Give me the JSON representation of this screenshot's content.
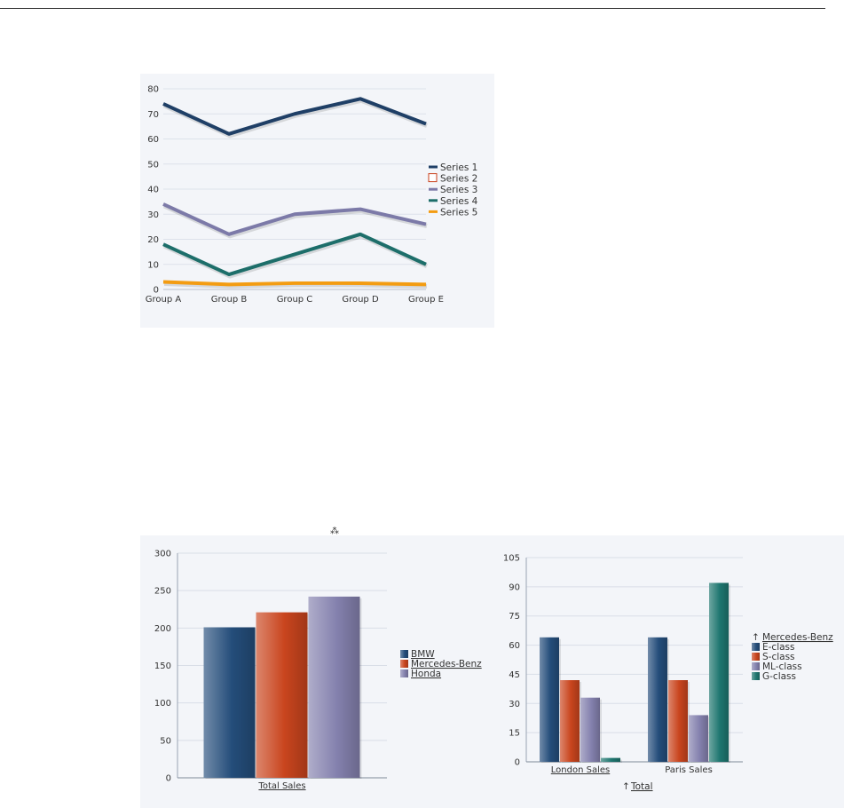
{
  "stray_mark": "⁂",
  "charts": {
    "line": {
      "type": "line",
      "title": "",
      "categories": [
        "Group A",
        "Group B",
        "Group C",
        "Group D",
        "Group E"
      ],
      "ylim": [
        0,
        80
      ],
      "yticks": [
        0,
        10,
        20,
        30,
        40,
        50,
        60,
        70,
        80
      ],
      "grid": true,
      "legend": "right",
      "series": [
        {
          "name": "Series 1",
          "values": [
            74,
            62,
            70,
            76,
            66
          ],
          "color": "#1f3f66",
          "legend_style": "line"
        },
        {
          "name": "Series 2",
          "values": [],
          "color": "#c8401c",
          "legend_style": "box"
        },
        {
          "name": "Series 3",
          "values": [
            34,
            22,
            30,
            32,
            26
          ],
          "color": "#7c7aa8",
          "legend_style": "line"
        },
        {
          "name": "Series 4",
          "values": [
            18,
            6,
            14,
            22,
            10
          ],
          "color": "#1d6e6a",
          "legend_style": "line"
        },
        {
          "name": "Series 5",
          "values": [
            3,
            2,
            2.5,
            2.5,
            2
          ],
          "color": "#f39c12",
          "legend_style": "line"
        }
      ]
    },
    "bar_total": {
      "type": "bar",
      "categories": [
        "Total Sales"
      ],
      "ylim": [
        0,
        300
      ],
      "yticks": [
        0,
        50,
        100,
        150,
        200,
        250,
        300
      ],
      "grid": true,
      "legend": "right",
      "series": [
        {
          "name": "BMW",
          "values": [
            201
          ],
          "color": "#244d7a",
          "link": true
        },
        {
          "name": "Mercedes-Benz",
          "values": [
            221
          ],
          "color": "#c9451e",
          "link": true
        },
        {
          "name": "Honda",
          "values": [
            242
          ],
          "color": "#8481ae",
          "link": true
        }
      ]
    },
    "bar_mercedes": {
      "type": "bar",
      "categories": [
        "London Sales",
        "Paris Sales"
      ],
      "category_links": [
        true,
        false
      ],
      "ylim": [
        0,
        105
      ],
      "yticks": [
        0,
        15,
        30,
        45,
        60,
        75,
        90,
        105
      ],
      "grid": true,
      "legend": "right",
      "legend_title": "Mercedes-Benz",
      "footer_link": "Total",
      "series": [
        {
          "name": "E-class",
          "values": [
            64,
            64
          ],
          "color": "#244d7a"
        },
        {
          "name": "S-class",
          "values": [
            42,
            42
          ],
          "color": "#c9451e"
        },
        {
          "name": "ML-class",
          "values": [
            33,
            24
          ],
          "color": "#8481ae"
        },
        {
          "name": "G-class",
          "values": [
            2,
            92
          ],
          "color": "#1e766f"
        }
      ]
    }
  }
}
